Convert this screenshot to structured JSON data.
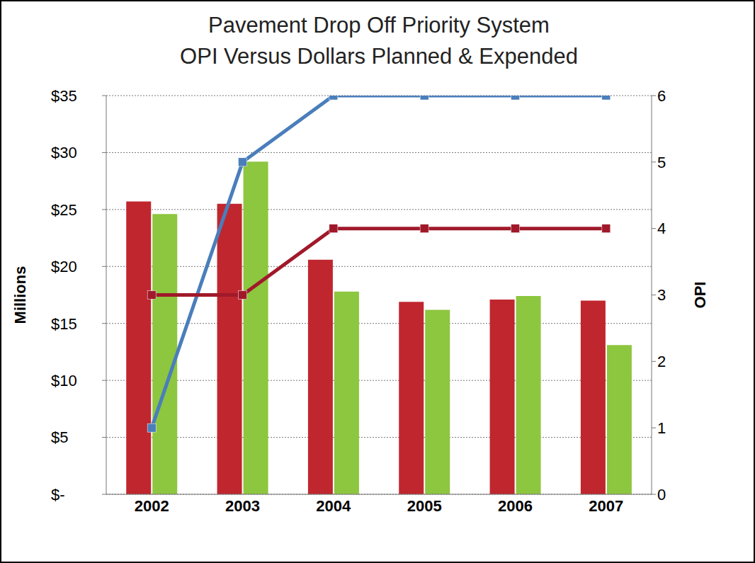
{
  "chart_data": {
    "type": "bar",
    "title": "Pavement Drop Off Priority System",
    "subtitle": "OPI Versus Dollars Planned & Expended",
    "y_label": "Millions",
    "y2_label": "OPI",
    "categories": [
      "2002",
      "2003",
      "2004",
      "2005",
      "2006",
      "2007"
    ],
    "series": [
      {
        "type": "bar",
        "color": "#c0262e",
        "values": [
          25.7,
          25.5,
          20.6,
          16.9,
          17.1,
          17.0
        ]
      },
      {
        "type": "bar",
        "color": "#8dc63f",
        "values": [
          24.6,
          29.2,
          17.8,
          16.2,
          17.4,
          13.1
        ]
      },
      {
        "type": "line",
        "axis": "y2",
        "color": "#4a7ebb",
        "marker": "square",
        "values": [
          1,
          5,
          6,
          6,
          6,
          6
        ]
      },
      {
        "type": "line",
        "axis": "y2",
        "color": "#a0192a",
        "marker": "square",
        "values": [
          3,
          3,
          4,
          4,
          4,
          4
        ]
      }
    ],
    "ylim": [
      0,
      35
    ],
    "yticks": [
      {
        "value": 0,
        "label": "$-"
      },
      {
        "value": 5,
        "label": "$5"
      },
      {
        "value": 10,
        "label": "$10"
      },
      {
        "value": 15,
        "label": "$15"
      },
      {
        "value": 20,
        "label": "$20"
      },
      {
        "value": 25,
        "label": "$25"
      },
      {
        "value": 30,
        "label": "$30"
      },
      {
        "value": 35,
        "label": "$35"
      }
    ],
    "y2lim": [
      0,
      6
    ],
    "y2ticks": [
      0,
      1,
      2,
      3,
      4,
      5,
      6
    ],
    "grid": true
  }
}
